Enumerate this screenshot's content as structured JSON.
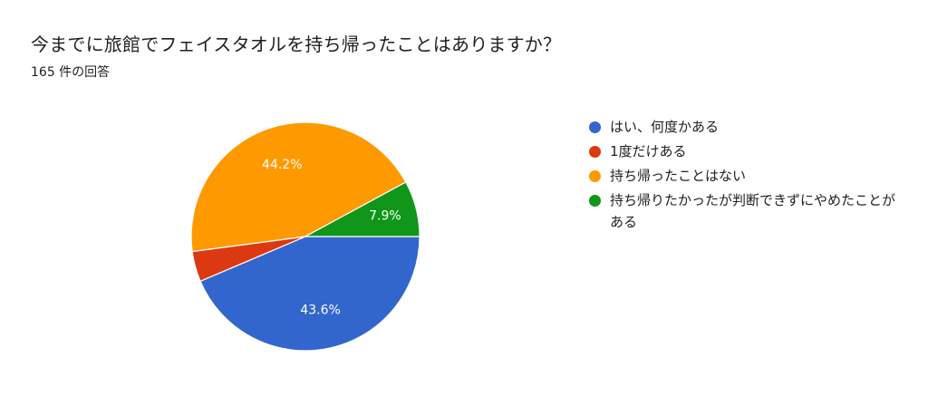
{
  "header": {
    "title": "今までに旅館でフェイスタオルを持ち帰ったことはありますか？",
    "subtitle": "165 件の回答"
  },
  "chart_data": {
    "type": "pie",
    "title": "今までに旅館でフェイスタオルを持ち帰ったことはありますか？",
    "subtitle": "165 件の回答",
    "legend_position": "right",
    "slices": [
      {
        "label": "はい、何度かある",
        "value": 43.6,
        "display": "43.6%",
        "color": "#3366cc"
      },
      {
        "label": "1度だけある",
        "value": 4.3,
        "display": "",
        "color": "#dc3912"
      },
      {
        "label": "持ち帰ったことはない",
        "value": 44.2,
        "display": "44.2%",
        "color": "#ff9900"
      },
      {
        "label": "持ち帰りたかったが判断できずにやめたことがある",
        "value": 7.9,
        "display": "7.9%",
        "color": "#109618"
      }
    ]
  }
}
